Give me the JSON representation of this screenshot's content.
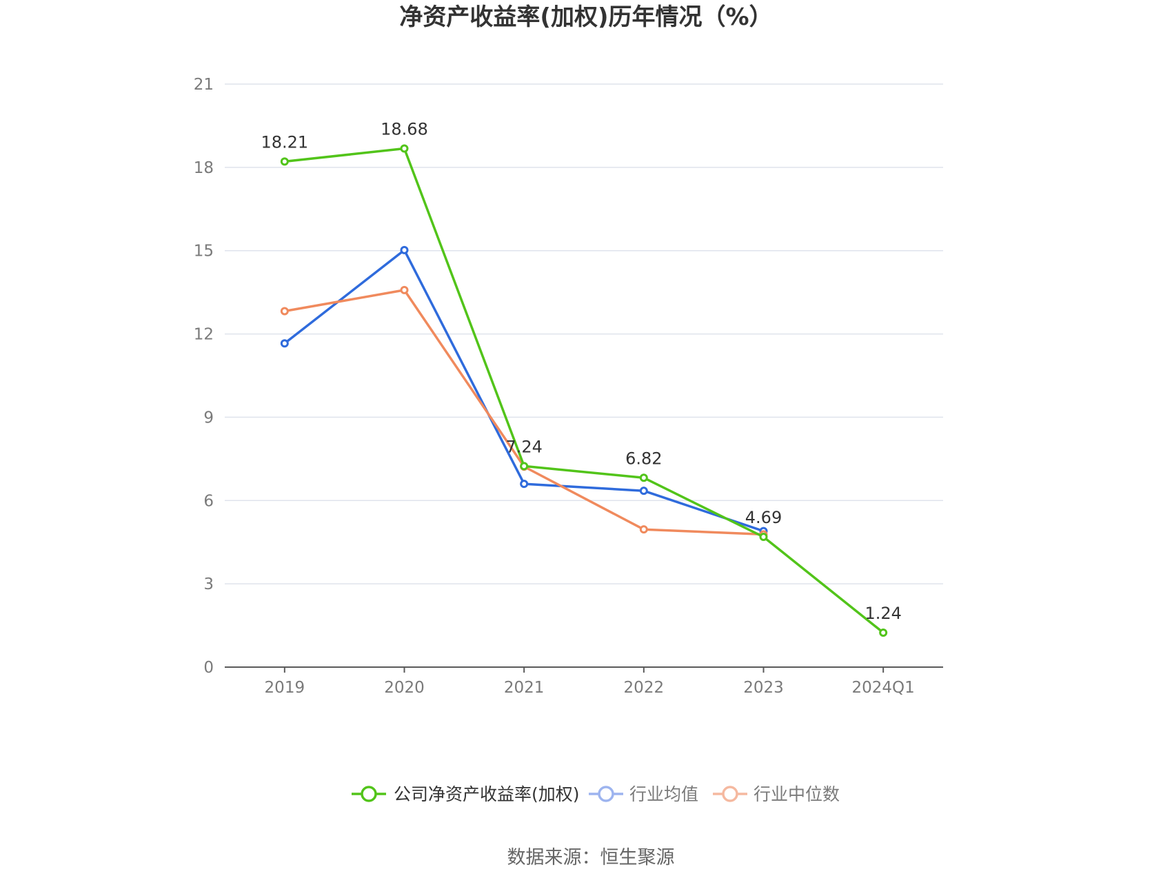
{
  "chart_data": {
    "type": "line",
    "title": "净资产收益率(加权)历年情况（%）",
    "categories": [
      "2019",
      "2020",
      "2021",
      "2022",
      "2023",
      "2024Q1"
    ],
    "ylim": [
      0,
      21
    ],
    "yticks": [
      0,
      3,
      6,
      9,
      12,
      15,
      18,
      21
    ],
    "grid": true,
    "legend_position": "bottom-center",
    "series": [
      {
        "name": "公司净资产收益率(加权)",
        "color": "#52c41a",
        "values": [
          18.21,
          18.68,
          7.24,
          6.82,
          4.69,
          1.24
        ],
        "labels": [
          "18.21",
          "18.68",
          "7.24",
          "6.82",
          "4.69",
          "1.24"
        ],
        "legend_color": "#52c41a"
      },
      {
        "name": "行业均值",
        "color": "#2f6bdc",
        "values": [
          11.66,
          15.02,
          6.6,
          6.35,
          4.9,
          null
        ],
        "legend_color": "#9db4ef"
      },
      {
        "name": "行业中位数",
        "color": "#f08a5d",
        "values": [
          12.82,
          13.58,
          7.22,
          4.96,
          4.78,
          null
        ],
        "legend_color": "#f5b9a0"
      }
    ],
    "source": "数据来源：恒生聚源"
  }
}
